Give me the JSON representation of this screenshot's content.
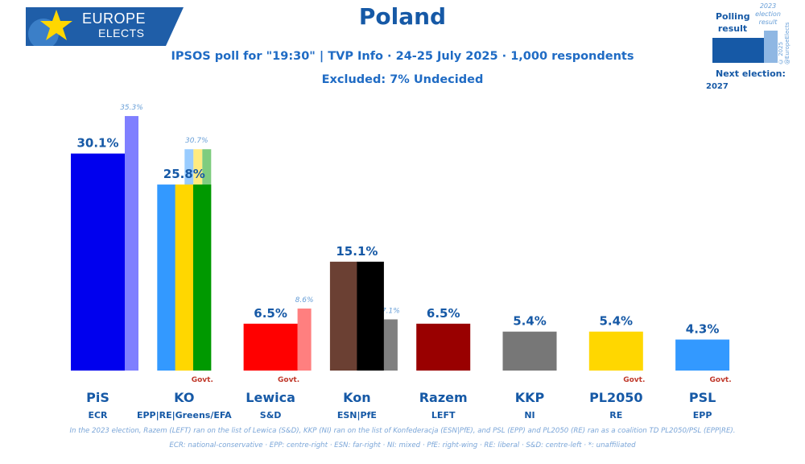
{
  "header": {
    "brand_line1": "EUROPE",
    "brand_line2": "ELECTS",
    "title": "Poland",
    "subtitle": "IPSOS poll for \"19:30\" | TVP Info · 24-25 July 2025 · 1,000 respondents",
    "excluded": "Excluded: 7% Undecided"
  },
  "legend": {
    "polling_result": "Polling result",
    "election_result": "2023 election result",
    "copyright": "© 2025 @EuropeElects",
    "next_election_label": "Next election:",
    "next_election_year": "2027"
  },
  "footnotes": {
    "line1": "In the 2023 election, Razem (LEFT) ran on the list of Lewica (S&D), KKP (NI) ran on the list of Konfederacja (ESN|PfE), and PSL (EPP) and PL2050 (RE) ran as a coalition TD PL2050/PSL (EPP|RE).",
    "line2": "ECR: national-conservative · EPP: centre-right · ESN: far-right · NI: mixed · PfE: right-wing · RE: liberal · S&D: centre-left · *: unaffiliated"
  },
  "chart_data": {
    "type": "bar",
    "title": "Poland",
    "ylabel": "",
    "ylim": [
      0,
      36
    ],
    "unit": "%",
    "series": [
      {
        "name": "Polling result",
        "values": [
          30.1,
          25.8,
          6.5,
          15.1,
          6.5,
          5.4,
          5.4,
          4.3
        ]
      },
      {
        "name": "2023 election result",
        "values": [
          35.3,
          30.7,
          8.6,
          7.1,
          null,
          null,
          null,
          null
        ]
      }
    ],
    "categories": [
      "PiS",
      "KO",
      "Lewica",
      "Kon",
      "Razem",
      "KKP",
      "PL2050",
      "PSL"
    ],
    "parties": [
      {
        "name": "PiS",
        "group": "ECR",
        "poll": 30.1,
        "poll_label": "30.1%",
        "prev": 35.3,
        "prev_label": "35.3%",
        "govt": "",
        "colors": [
          "#0000ee"
        ],
        "prev_colors": [
          "#7f7fff"
        ]
      },
      {
        "name": "KO",
        "group": "EPP|RE|Greens/EFA",
        "poll": 25.8,
        "poll_label": "25.8%",
        "prev": 30.7,
        "prev_label": "30.7%",
        "govt": "Govt.",
        "colors": [
          "#3399ff",
          "#ffd700",
          "#009900"
        ],
        "prev_colors": [
          "#99ccff",
          "#ffeb80",
          "#7fcc7f"
        ]
      },
      {
        "name": "Lewica",
        "group": "S&D",
        "poll": 6.5,
        "poll_label": "6.5%",
        "prev": 8.6,
        "prev_label": "8.6%",
        "govt": "Govt.",
        "colors": [
          "#ff0000"
        ],
        "prev_colors": [
          "#ff7f7f"
        ]
      },
      {
        "name": "Kon",
        "group": "ESN|PfE",
        "poll": 15.1,
        "poll_label": "15.1%",
        "prev": 7.1,
        "prev_label": "7.1%",
        "govt": "",
        "colors": [
          "#6b4033",
          "#000000"
        ],
        "prev_colors": [
          "#808080"
        ]
      },
      {
        "name": "Razem",
        "group": "LEFT",
        "poll": 6.5,
        "poll_label": "6.5%",
        "prev": null,
        "prev_label": "",
        "govt": "",
        "colors": [
          "#990000"
        ],
        "prev_colors": []
      },
      {
        "name": "KKP",
        "group": "NI",
        "poll": 5.4,
        "poll_label": "5.4%",
        "prev": null,
        "prev_label": "",
        "govt": "",
        "colors": [
          "#777777"
        ],
        "prev_colors": []
      },
      {
        "name": "PL2050",
        "group": "RE",
        "poll": 5.4,
        "poll_label": "5.4%",
        "prev": null,
        "prev_label": "",
        "govt": "Govt.",
        "colors": [
          "#ffd700"
        ],
        "prev_colors": []
      },
      {
        "name": "PSL",
        "group": "EPP",
        "poll": 4.3,
        "poll_label": "4.3%",
        "prev": null,
        "prev_label": "",
        "govt": "Govt.",
        "colors": [
          "#3399ff"
        ],
        "prev_colors": []
      }
    ]
  }
}
